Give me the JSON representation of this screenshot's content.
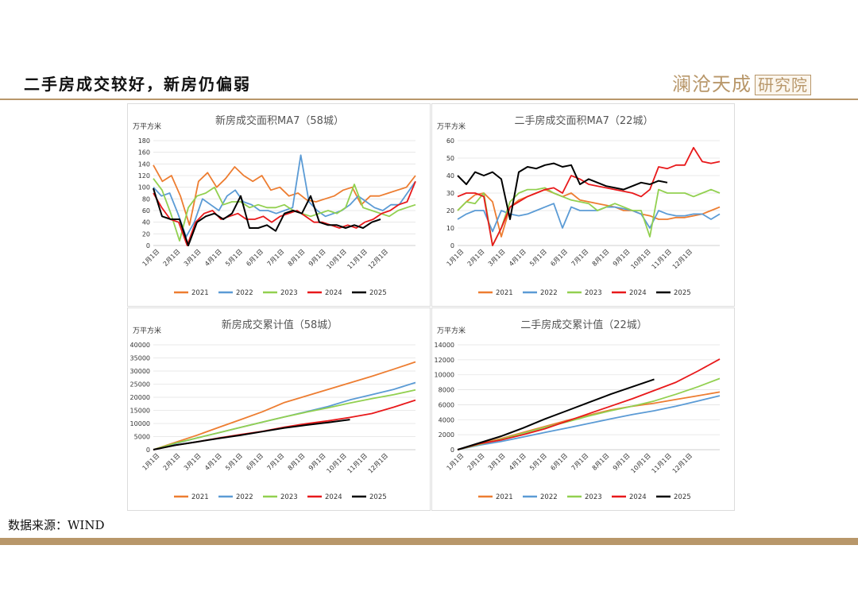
{
  "header": {
    "title": "二手房成交较好，新房仍偏弱",
    "logo_main": "澜沧天成",
    "logo_box": "研究院"
  },
  "footer": {
    "source": "数据来源：WIND"
  },
  "colors": {
    "2021": "#ed7d31",
    "2022": "#5b9bd5",
    "2023": "#92d050",
    "2024": "#e8191b",
    "2025": "#000000"
  },
  "chart_data": [
    {
      "type": "line",
      "title": "新房成交面积MA7（58城）",
      "ylabel": "万平方米",
      "ylim": [
        0,
        180
      ],
      "yticks": [
        0,
        20,
        40,
        60,
        80,
        100,
        120,
        140,
        160,
        180
      ],
      "xticks": [
        "1月1日",
        "2月1日",
        "3月1日",
        "4月1日",
        "5月1日",
        "6月1日",
        "7月1日",
        "8月1日",
        "9月1日",
        "10月1日",
        "11月1日",
        "12月1日"
      ],
      "legend": "bottom",
      "series": [
        {
          "name": "2021",
          "y": [
            138,
            110,
            120,
            85,
            35,
            110,
            125,
            100,
            115,
            135,
            120,
            110,
            120,
            95,
            100,
            85,
            90,
            78,
            75,
            80,
            85,
            95,
            100,
            70,
            85,
            85,
            90,
            95,
            100,
            120
          ]
        },
        {
          "name": "2022",
          "y": [
            100,
            85,
            90,
            55,
            15,
            40,
            80,
            70,
            60,
            85,
            95,
            75,
            70,
            60,
            60,
            55,
            60,
            65,
            155,
            75,
            60,
            50,
            55,
            60,
            70,
            85,
            75,
            65,
            60,
            70,
            70,
            90,
            110
          ]
        },
        {
          "name": "2023",
          "y": [
            115,
            95,
            55,
            8,
            65,
            85,
            90,
            100,
            70,
            75,
            75,
            65,
            70,
            65,
            65,
            70,
            60,
            55,
            50,
            55,
            60,
            55,
            65,
            105,
            65,
            60,
            55,
            50,
            60,
            65,
            70
          ]
        },
        {
          "name": "2024",
          "y": [
            90,
            65,
            45,
            40,
            0,
            40,
            55,
            60,
            45,
            50,
            55,
            45,
            45,
            50,
            40,
            50,
            55,
            60,
            50,
            40,
            40,
            35,
            30,
            35,
            30,
            40,
            45,
            55,
            60,
            70,
            75,
            110
          ]
        },
        {
          "name": "2025",
          "y": [
            98,
            50,
            45,
            45,
            0,
            40,
            50,
            55,
            45,
            55,
            85,
            30,
            30,
            35,
            25,
            55,
            60,
            55,
            85,
            40,
            35,
            35,
            30,
            35,
            30,
            40,
            45
          ]
        }
      ]
    },
    {
      "type": "line",
      "title": "二手房成交面积MA7（22城）",
      "ylabel": "万平方米",
      "ylim": [
        0,
        60
      ],
      "yticks": [
        0,
        10,
        20,
        30,
        40,
        50,
        60
      ],
      "xticks": [
        "1月1日",
        "2月1日",
        "3月1日",
        "4月1日",
        "5月1日",
        "6月1日",
        "7月1日",
        "8月1日",
        "9月1日",
        "10月1日",
        "11月1日",
        "12月1日"
      ],
      "legend": "bottom",
      "series": [
        {
          "name": "2021",
          "y": [
            20,
            25,
            29,
            30,
            25,
            5,
            22,
            26,
            28,
            30,
            32,
            30,
            28,
            30,
            26,
            25,
            24,
            23,
            22,
            20,
            20,
            18,
            17,
            15,
            15,
            16,
            16,
            17,
            18,
            20,
            22
          ]
        },
        {
          "name": "2022",
          "y": [
            15,
            18,
            20,
            20,
            8,
            20,
            18,
            17,
            18,
            20,
            22,
            24,
            10,
            22,
            20,
            20,
            20,
            22,
            22,
            21,
            20,
            18,
            10,
            20,
            18,
            17,
            17,
            18,
            18,
            15,
            18
          ]
        },
        {
          "name": "2023",
          "y": [
            20,
            25,
            24,
            30,
            0,
            10,
            25,
            30,
            32,
            32,
            33,
            30,
            28,
            26,
            25,
            24,
            20,
            22,
            24,
            22,
            20,
            20,
            5,
            32,
            30,
            30,
            30,
            28,
            30,
            32,
            30
          ]
        },
        {
          "name": "2024",
          "y": [
            28,
            30,
            30,
            28,
            0,
            10,
            22,
            25,
            28,
            30,
            32,
            33,
            30,
            40,
            38,
            35,
            34,
            33,
            32,
            31,
            30,
            28,
            32,
            45,
            44,
            46,
            46,
            56,
            48,
            47,
            48
          ]
        },
        {
          "name": "2025",
          "y": [
            40,
            35,
            42,
            40,
            42,
            38,
            15,
            42,
            45,
            44,
            46,
            47,
            45,
            46,
            35,
            38,
            36,
            34,
            33,
            32,
            34,
            36,
            35,
            37,
            36
          ]
        }
      ]
    },
    {
      "type": "line",
      "title": "新房成交累计值（58城）",
      "ylabel": "万平方米",
      "ylim": [
        0,
        40000
      ],
      "yticks": [
        0,
        5000,
        10000,
        15000,
        20000,
        25000,
        30000,
        35000,
        40000
      ],
      "xticks": [
        "1月1日",
        "2月1日",
        "3月1日",
        "4月1日",
        "5月1日",
        "6月1日",
        "7月1日",
        "8月1日",
        "9月1日",
        "10月1日",
        "11月1日",
        "12月1日"
      ],
      "legend": "bottom",
      "series": [
        {
          "name": "2021",
          "y": [
            0,
            2800,
            5500,
            8500,
            11500,
            14500,
            18000,
            20500,
            23000,
            25500,
            28000,
            30700,
            33500
          ]
        },
        {
          "name": "2022",
          "y": [
            0,
            2300,
            4500,
            6500,
            8500,
            10500,
            12500,
            14500,
            16500,
            19000,
            21000,
            23000,
            25600
          ]
        },
        {
          "name": "2023",
          "y": [
            0,
            2500,
            4500,
            6500,
            8500,
            10500,
            12500,
            14300,
            16000,
            17800,
            19500,
            21000,
            22800
          ]
        },
        {
          "name": "2024",
          "y": [
            0,
            1700,
            3000,
            4500,
            5800,
            7000,
            8600,
            9900,
            11000,
            12300,
            13800,
            16200,
            18900
          ]
        },
        {
          "name": "2025",
          "y": [
            0,
            1700,
            3000,
            4300,
            5500,
            6900,
            8300,
            9400,
            10400,
            11500
          ]
        }
      ]
    },
    {
      "type": "line",
      "title": "二手房成交累计值（22城）",
      "ylabel": "万平方米",
      "ylim": [
        0,
        14000
      ],
      "yticks": [
        0,
        2000,
        4000,
        6000,
        8000,
        10000,
        12000,
        14000
      ],
      "xticks": [
        "1月1日",
        "2月1日",
        "3月1日",
        "4月1日",
        "5月1日",
        "6月1日",
        "7月1日",
        "8月1日",
        "9月1日",
        "10月1日",
        "11月1日",
        "12月1日"
      ],
      "legend": "bottom",
      "series": [
        {
          "name": "2021",
          "y": [
            0,
            800,
            1500,
            2300,
            3100,
            3900,
            4600,
            5300,
            5800,
            6200,
            6700,
            7200,
            7700
          ]
        },
        {
          "name": "2022",
          "y": [
            0,
            600,
            1100,
            1700,
            2300,
            2900,
            3500,
            4100,
            4700,
            5200,
            5800,
            6500,
            7200
          ]
        },
        {
          "name": "2023",
          "y": [
            0,
            700,
            1400,
            2200,
            3000,
            3700,
            4500,
            5200,
            5800,
            6500,
            7400,
            8400,
            9500
          ]
        },
        {
          "name": "2024",
          "y": [
            0,
            800,
            1300,
            2000,
            2800,
            3800,
            4800,
            5800,
            6800,
            7900,
            9000,
            10500,
            12100
          ]
        },
        {
          "name": "2025",
          "y": [
            0,
            900,
            1800,
            2900,
            4100,
            5200,
            6300,
            7400,
            8400,
            9400
          ]
        }
      ]
    }
  ]
}
